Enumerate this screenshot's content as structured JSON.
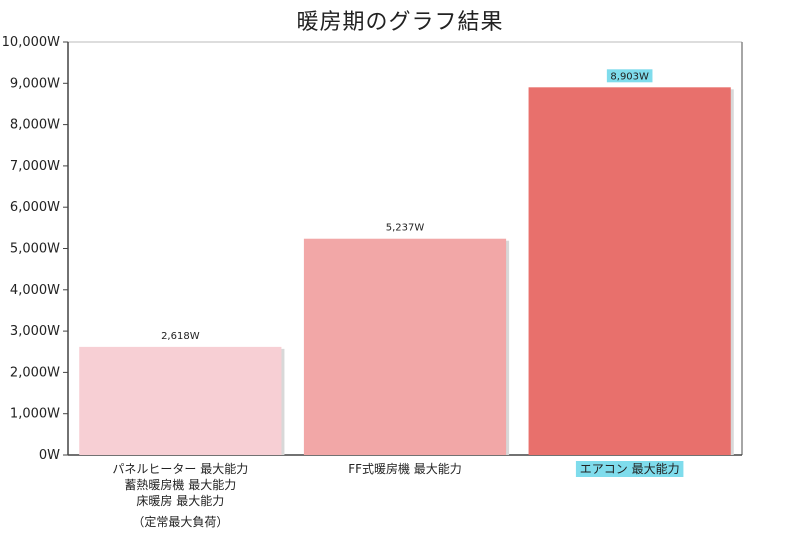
{
  "chart_data": {
    "type": "bar",
    "title": "暖房期のグラフ結果",
    "xlabel": "",
    "ylabel": "",
    "ylim": [
      0,
      10000
    ],
    "yticks": [
      {
        "value": 0,
        "label": "0W"
      },
      {
        "value": 1000,
        "label": "1,000W"
      },
      {
        "value": 2000,
        "label": "2,000W"
      },
      {
        "value": 3000,
        "label": "3,000W"
      },
      {
        "value": 4000,
        "label": "4,000W"
      },
      {
        "value": 5000,
        "label": "5,000W"
      },
      {
        "value": 6000,
        "label": "6,000W"
      },
      {
        "value": 7000,
        "label": "7,000W"
      },
      {
        "value": 8000,
        "label": "8,000W"
      },
      {
        "value": 9000,
        "label": "9,000W"
      },
      {
        "value": 10000,
        "label": "10,000W"
      }
    ],
    "categories": [
      [
        "パネルヒーター 最大能力",
        "蓄熱暖房機 最大能力",
        "床暖房 最大能力",
        "（定常最大負荷）"
      ],
      [
        "FF式暖房機 最大能力"
      ],
      [
        "エアコン 最大能力"
      ]
    ],
    "values": [
      2618,
      5237,
      8903
    ],
    "data_labels": [
      "2,618W",
      "5,237W",
      "8,903W"
    ],
    "bar_colors": [
      "#f7cfd4",
      "#f2a7a7",
      "#e8706c"
    ],
    "highlight_color": "#7fdcec",
    "highlighted_index": 2,
    "grid": false
  }
}
